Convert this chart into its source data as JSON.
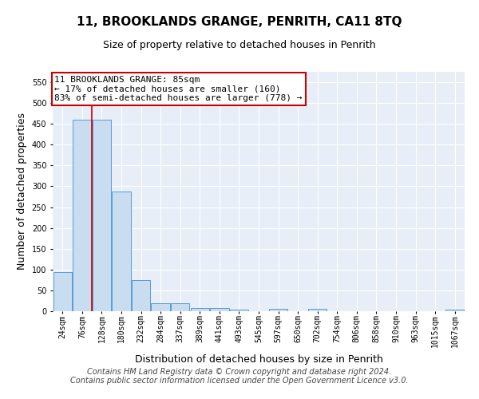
{
  "title": "11, BROOKLANDS GRANGE, PENRITH, CA11 8TQ",
  "subtitle": "Size of property relative to detached houses in Penrith",
  "xlabel": "Distribution of detached houses by size in Penrith",
  "ylabel": "Number of detached properties",
  "categories": [
    "24sqm",
    "76sqm",
    "128sqm",
    "180sqm",
    "232sqm",
    "284sqm",
    "337sqm",
    "389sqm",
    "441sqm",
    "493sqm",
    "545sqm",
    "597sqm",
    "650sqm",
    "702sqm",
    "754sqm",
    "806sqm",
    "858sqm",
    "910sqm",
    "963sqm",
    "1015sqm",
    "1067sqm"
  ],
  "values": [
    93,
    460,
    460,
    287,
    75,
    20,
    20,
    8,
    8,
    4,
    0,
    5,
    0,
    5,
    0,
    0,
    0,
    0,
    0,
    0,
    4
  ],
  "bar_color": "#c8ddf0",
  "bar_edge_color": "#5b9bd5",
  "property_line_x": 1.5,
  "property_line_color": "#cc0000",
  "ylim": [
    0,
    575
  ],
  "yticks": [
    0,
    50,
    100,
    150,
    200,
    250,
    300,
    350,
    400,
    450,
    500,
    550
  ],
  "annotation_text": "11 BROOKLANDS GRANGE: 85sqm\n← 17% of detached houses are smaller (160)\n83% of semi-detached houses are larger (778) →",
  "annotation_box_color": "white",
  "annotation_box_edge": "#cc0000",
  "footer_line1": "Contains HM Land Registry data © Crown copyright and database right 2024.",
  "footer_line2": "Contains public sector information licensed under the Open Government Licence v3.0.",
  "background_color": "#e8eef7",
  "grid_color": "white",
  "title_fontsize": 11,
  "subtitle_fontsize": 9,
  "axis_label_fontsize": 9,
  "tick_fontsize": 7,
  "annotation_fontsize": 8,
  "footer_fontsize": 7
}
